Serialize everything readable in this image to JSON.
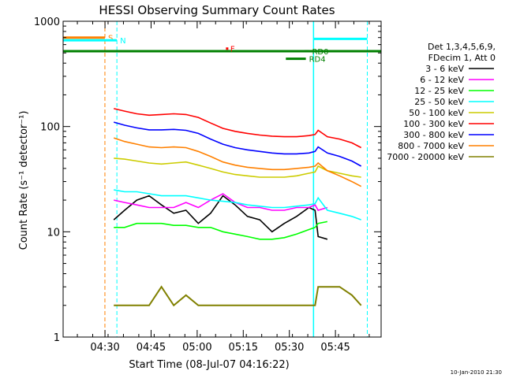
{
  "chart_data": {
    "type": "line",
    "title": "HESSI Observing Summary Count Rates",
    "xlabel": "Start Time (08-Jul-07 04:16:22)",
    "ylabel": "Count Rate (s⁻¹ detector⁻¹)",
    "yscale": "log",
    "ylim": [
      1,
      1000
    ],
    "xlim_minutes": [
      0,
      103.5
    ],
    "x_ticks": [
      {
        "t": 13.63,
        "label": "04:30"
      },
      {
        "t": 28.63,
        "label": "04:45"
      },
      {
        "t": 43.63,
        "label": "05:00"
      },
      {
        "t": 58.63,
        "label": "05:15"
      },
      {
        "t": 73.63,
        "label": "05:30"
      },
      {
        "t": 88.63,
        "label": "05:45"
      }
    ],
    "y_ticks": [
      {
        "v": 1,
        "label": "1"
      },
      {
        "v": 10,
        "label": "10"
      },
      {
        "v": 100,
        "label": "100"
      },
      {
        "v": 1000,
        "label": "1000"
      }
    ],
    "legend_header": [
      "Det 1,3,4,5,6,9,",
      "FDecim 1, Att 0"
    ],
    "legend_placement": "right",
    "series": [
      {
        "name": "3 - 6 keV",
        "color": "#000000",
        "points": [
          [
            16.5,
            13
          ],
          [
            20,
            16
          ],
          [
            24,
            20
          ],
          [
            28,
            22
          ],
          [
            32,
            18
          ],
          [
            36,
            15
          ],
          [
            40,
            16
          ],
          [
            44,
            12
          ],
          [
            48,
            15
          ],
          [
            52,
            22
          ],
          [
            56,
            18
          ],
          [
            60,
            14
          ],
          [
            64,
            13
          ],
          [
            68,
            10
          ],
          [
            72,
            12
          ],
          [
            76,
            14
          ],
          [
            80,
            17
          ],
          [
            82,
            16
          ],
          [
            83,
            9
          ],
          [
            86,
            8.5
          ]
        ]
      },
      {
        "name": "6 - 12 keV",
        "color": "#ff00ff",
        "points": [
          [
            16.5,
            20
          ],
          [
            20,
            19
          ],
          [
            24,
            18
          ],
          [
            28,
            17
          ],
          [
            32,
            17
          ],
          [
            36,
            17
          ],
          [
            40,
            19
          ],
          [
            44,
            17
          ],
          [
            48,
            20
          ],
          [
            52,
            23
          ],
          [
            56,
            19
          ],
          [
            60,
            17
          ],
          [
            64,
            17
          ],
          [
            68,
            16
          ],
          [
            72,
            16
          ],
          [
            76,
            17
          ],
          [
            80,
            17
          ],
          [
            82,
            18
          ],
          [
            83,
            16
          ],
          [
            86,
            17
          ]
        ]
      },
      {
        "name": "12 - 25 keV",
        "color": "#00ff00",
        "points": [
          [
            16.5,
            11
          ],
          [
            20,
            11
          ],
          [
            24,
            12
          ],
          [
            28,
            12
          ],
          [
            32,
            12
          ],
          [
            36,
            11.5
          ],
          [
            40,
            11.5
          ],
          [
            44,
            11
          ],
          [
            48,
            11
          ],
          [
            52,
            10
          ],
          [
            56,
            9.5
          ],
          [
            60,
            9
          ],
          [
            64,
            8.5
          ],
          [
            68,
            8.5
          ],
          [
            72,
            8.8
          ],
          [
            76,
            9.5
          ],
          [
            80,
            10.5
          ],
          [
            82,
            11
          ],
          [
            83,
            12
          ],
          [
            86,
            12.5
          ]
        ]
      },
      {
        "name": "25 - 50 keV",
        "color": "#00ffff",
        "points": [
          [
            16.5,
            25
          ],
          [
            20,
            24
          ],
          [
            24,
            24
          ],
          [
            28,
            23
          ],
          [
            32,
            22
          ],
          [
            36,
            22
          ],
          [
            40,
            22
          ],
          [
            44,
            21
          ],
          [
            48,
            20
          ],
          [
            52,
            19.5
          ],
          [
            56,
            19
          ],
          [
            60,
            18
          ],
          [
            64,
            17.5
          ],
          [
            68,
            17
          ],
          [
            72,
            17
          ],
          [
            76,
            17.5
          ],
          [
            80,
            18
          ],
          [
            82,
            18.5
          ],
          [
            83,
            21
          ],
          [
            86,
            16
          ],
          [
            90,
            15
          ],
          [
            94,
            14
          ],
          [
            97,
            13
          ]
        ]
      },
      {
        "name": "50 - 100 keV",
        "color": "#cccc00",
        "points": [
          [
            16.5,
            50
          ],
          [
            20,
            49
          ],
          [
            24,
            47
          ],
          [
            28,
            45
          ],
          [
            32,
            44
          ],
          [
            36,
            45
          ],
          [
            40,
            46
          ],
          [
            44,
            43
          ],
          [
            48,
            40
          ],
          [
            52,
            37
          ],
          [
            56,
            35
          ],
          [
            60,
            34
          ],
          [
            64,
            33
          ],
          [
            68,
            33
          ],
          [
            72,
            33
          ],
          [
            76,
            34
          ],
          [
            80,
            36
          ],
          [
            82,
            37
          ],
          [
            83,
            42
          ],
          [
            86,
            38
          ],
          [
            90,
            36
          ],
          [
            94,
            34
          ],
          [
            97,
            33
          ]
        ]
      },
      {
        "name": "100 - 300 keV",
        "color": "#ff0000",
        "points": [
          [
            16.5,
            148
          ],
          [
            20,
            140
          ],
          [
            24,
            132
          ],
          [
            28,
            128
          ],
          [
            32,
            130
          ],
          [
            36,
            132
          ],
          [
            40,
            130
          ],
          [
            44,
            122
          ],
          [
            48,
            108
          ],
          [
            52,
            96
          ],
          [
            56,
            90
          ],
          [
            60,
            86
          ],
          [
            64,
            83
          ],
          [
            68,
            81
          ],
          [
            72,
            80
          ],
          [
            76,
            80
          ],
          [
            80,
            82
          ],
          [
            82,
            84
          ],
          [
            83,
            92
          ],
          [
            86,
            80
          ],
          [
            90,
            76
          ],
          [
            94,
            70
          ],
          [
            97,
            63
          ]
        ]
      },
      {
        "name": "300 - 800 keV",
        "color": "#0000ff",
        "points": [
          [
            16.5,
            110
          ],
          [
            20,
            103
          ],
          [
            24,
            97
          ],
          [
            28,
            93
          ],
          [
            32,
            93
          ],
          [
            36,
            94
          ],
          [
            40,
            92
          ],
          [
            44,
            86
          ],
          [
            48,
            76
          ],
          [
            52,
            68
          ],
          [
            56,
            63
          ],
          [
            60,
            60
          ],
          [
            64,
            58
          ],
          [
            68,
            56
          ],
          [
            72,
            55
          ],
          [
            76,
            55
          ],
          [
            80,
            56
          ],
          [
            82,
            58
          ],
          [
            83,
            64
          ],
          [
            86,
            56
          ],
          [
            90,
            52
          ],
          [
            94,
            47
          ],
          [
            97,
            42
          ]
        ]
      },
      {
        "name": "800 - 7000 keV",
        "color": "#ff8000",
        "points": [
          [
            16.5,
            78
          ],
          [
            20,
            72
          ],
          [
            24,
            68
          ],
          [
            28,
            64
          ],
          [
            32,
            63
          ],
          [
            36,
            64
          ],
          [
            40,
            63
          ],
          [
            44,
            58
          ],
          [
            48,
            52
          ],
          [
            52,
            46
          ],
          [
            56,
            43
          ],
          [
            60,
            41
          ],
          [
            64,
            40
          ],
          [
            68,
            39
          ],
          [
            72,
            39
          ],
          [
            76,
            40
          ],
          [
            80,
            41
          ],
          [
            82,
            42
          ],
          [
            83,
            45
          ],
          [
            86,
            38
          ],
          [
            90,
            34
          ],
          [
            94,
            30
          ],
          [
            97,
            27
          ]
        ]
      },
      {
        "name": "7000 - 20000 keV",
        "color": "#808000",
        "points": [
          [
            16.5,
            2
          ],
          [
            20,
            2
          ],
          [
            24,
            2
          ],
          [
            28,
            2
          ],
          [
            32,
            3
          ],
          [
            36,
            2
          ],
          [
            40,
            2.5
          ],
          [
            44,
            2
          ],
          [
            48,
            2
          ],
          [
            52,
            2
          ],
          [
            56,
            2
          ],
          [
            60,
            2
          ],
          [
            64,
            2
          ],
          [
            68,
            2
          ],
          [
            72,
            2
          ],
          [
            76,
            2
          ],
          [
            80,
            2
          ],
          [
            82,
            2
          ],
          [
            83,
            3
          ],
          [
            86,
            3
          ],
          [
            90,
            3
          ],
          [
            94,
            2.5
          ],
          [
            97,
            2
          ]
        ]
      }
    ],
    "flag_bars": [
      {
        "label": "S",
        "color": "#ff8000",
        "x0": 0,
        "x1": 13.6,
        "y": 700
      },
      {
        "label": "N",
        "color": "#00ffff",
        "x0": 0,
        "x1": 17.5,
        "y": 660
      },
      {
        "label": "",
        "color": "#008000",
        "x0": 0,
        "x1": 103.5,
        "y": 520
      },
      {
        "label": "RD0",
        "color": "#008000",
        "x0": 78.5,
        "x1": 80,
        "y": 520
      },
      {
        "label": "RD4",
        "color": "#008000",
        "x0": 72.5,
        "x1": 79,
        "y": 440
      },
      {
        "label": "",
        "color": "#00ffff",
        "x0": 81.5,
        "x1": 99,
        "y": 680
      },
      {
        "label": "F",
        "color": "#ff0000",
        "x0": 53,
        "x1": 53.4,
        "y": 550
      }
    ],
    "markers": [
      {
        "x": 13.6,
        "color": "#ff8000",
        "style": "dashed"
      },
      {
        "x": 17.5,
        "color": "#00ffff",
        "style": "dashed"
      },
      {
        "x": 81.5,
        "color": "#00ffff",
        "style": "solid"
      },
      {
        "x": 99,
        "color": "#00ffff",
        "style": "dashed"
      }
    ],
    "footer_timestamp": "10-Jan-2010 21:30"
  }
}
